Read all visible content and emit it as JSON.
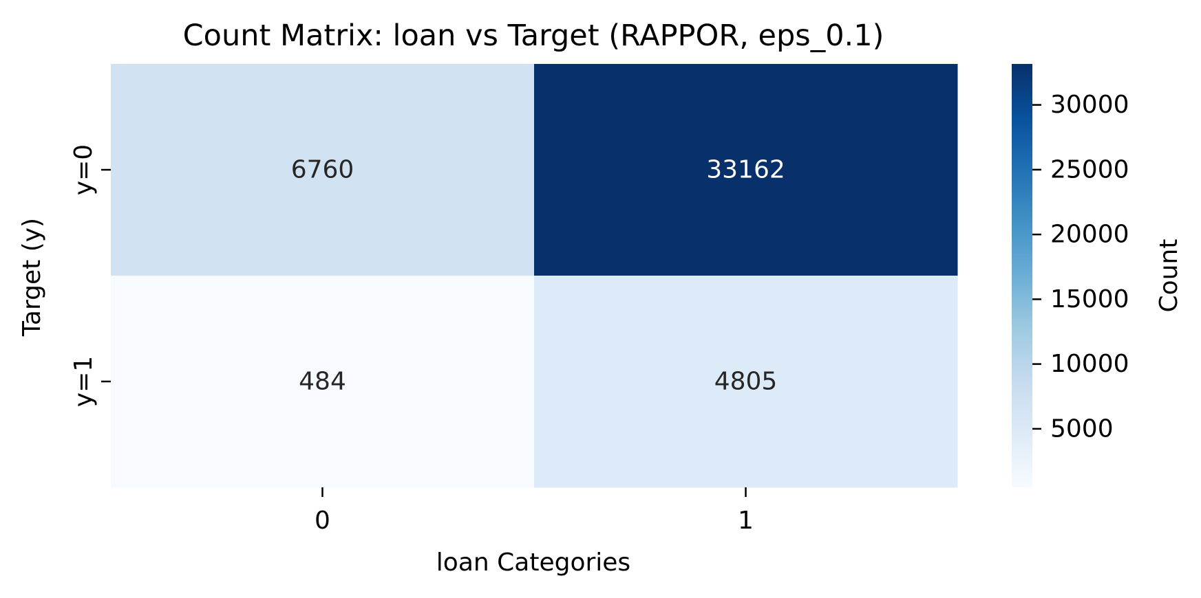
{
  "chart_data": {
    "type": "heatmap",
    "title": "Count Matrix: loan vs Target (RAPPOR, eps_0.1)",
    "xlabel": "loan Categories",
    "ylabel": "Target (y)",
    "x_categories": [
      "0",
      "1"
    ],
    "y_categories": [
      "y=0",
      "y=1"
    ],
    "values": [
      [
        6760,
        33162
      ],
      [
        484,
        4805
      ]
    ],
    "colorbar": {
      "label": "Count",
      "range": [
        484,
        33162
      ],
      "ticks": [
        5000,
        10000,
        15000,
        20000,
        25000,
        30000
      ],
      "tick_labels": [
        "5000",
        "10000",
        "15000",
        "20000",
        "25000",
        "30000"
      ],
      "colormap": "Blues",
      "colors": [
        "#f7fbff",
        "#deebf7",
        "#c6dbef",
        "#9ecae1",
        "#6baed6",
        "#4292c6",
        "#2171b5",
        "#08519c",
        "#08306b"
      ]
    },
    "annotation_colors": {
      "dark": "#262626",
      "light": "#ffffff"
    }
  }
}
